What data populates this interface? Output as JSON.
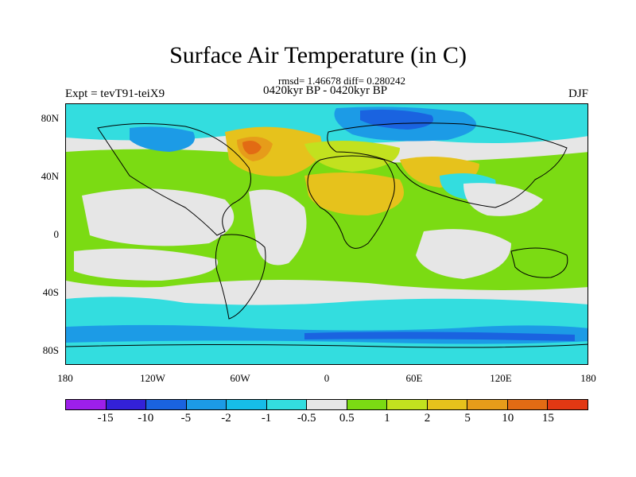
{
  "header": {
    "title": "Surface Air Temperature (in C)",
    "stats": "rmsd= 1.46678 diff= 0.280242",
    "expt": "Expt = tevT91-teiX9",
    "period": "0420kyr BP - 0420kyr BP",
    "season": "DJF"
  },
  "axes": {
    "y_labels": [
      "80N",
      "40N",
      "0",
      "40S",
      "80S"
    ],
    "x_labels": [
      "180",
      "120W",
      "60W",
      "0",
      "60E",
      "120E",
      "180"
    ]
  },
  "legend": {
    "colors": [
      "#9d1fea",
      "#3321d8",
      "#1a63e0",
      "#1c9be6",
      "#16bde8",
      "#33dddf",
      "#e6e6e6",
      "#7bdb13",
      "#c2e11f",
      "#e6c21c",
      "#e69c1a",
      "#e26b14",
      "#e23813"
    ],
    "labels": [
      "-15",
      "-10",
      "-5",
      "-2",
      "-1",
      "-0.5",
      "0.5",
      "1",
      "2",
      "5",
      "10",
      "15"
    ]
  }
}
